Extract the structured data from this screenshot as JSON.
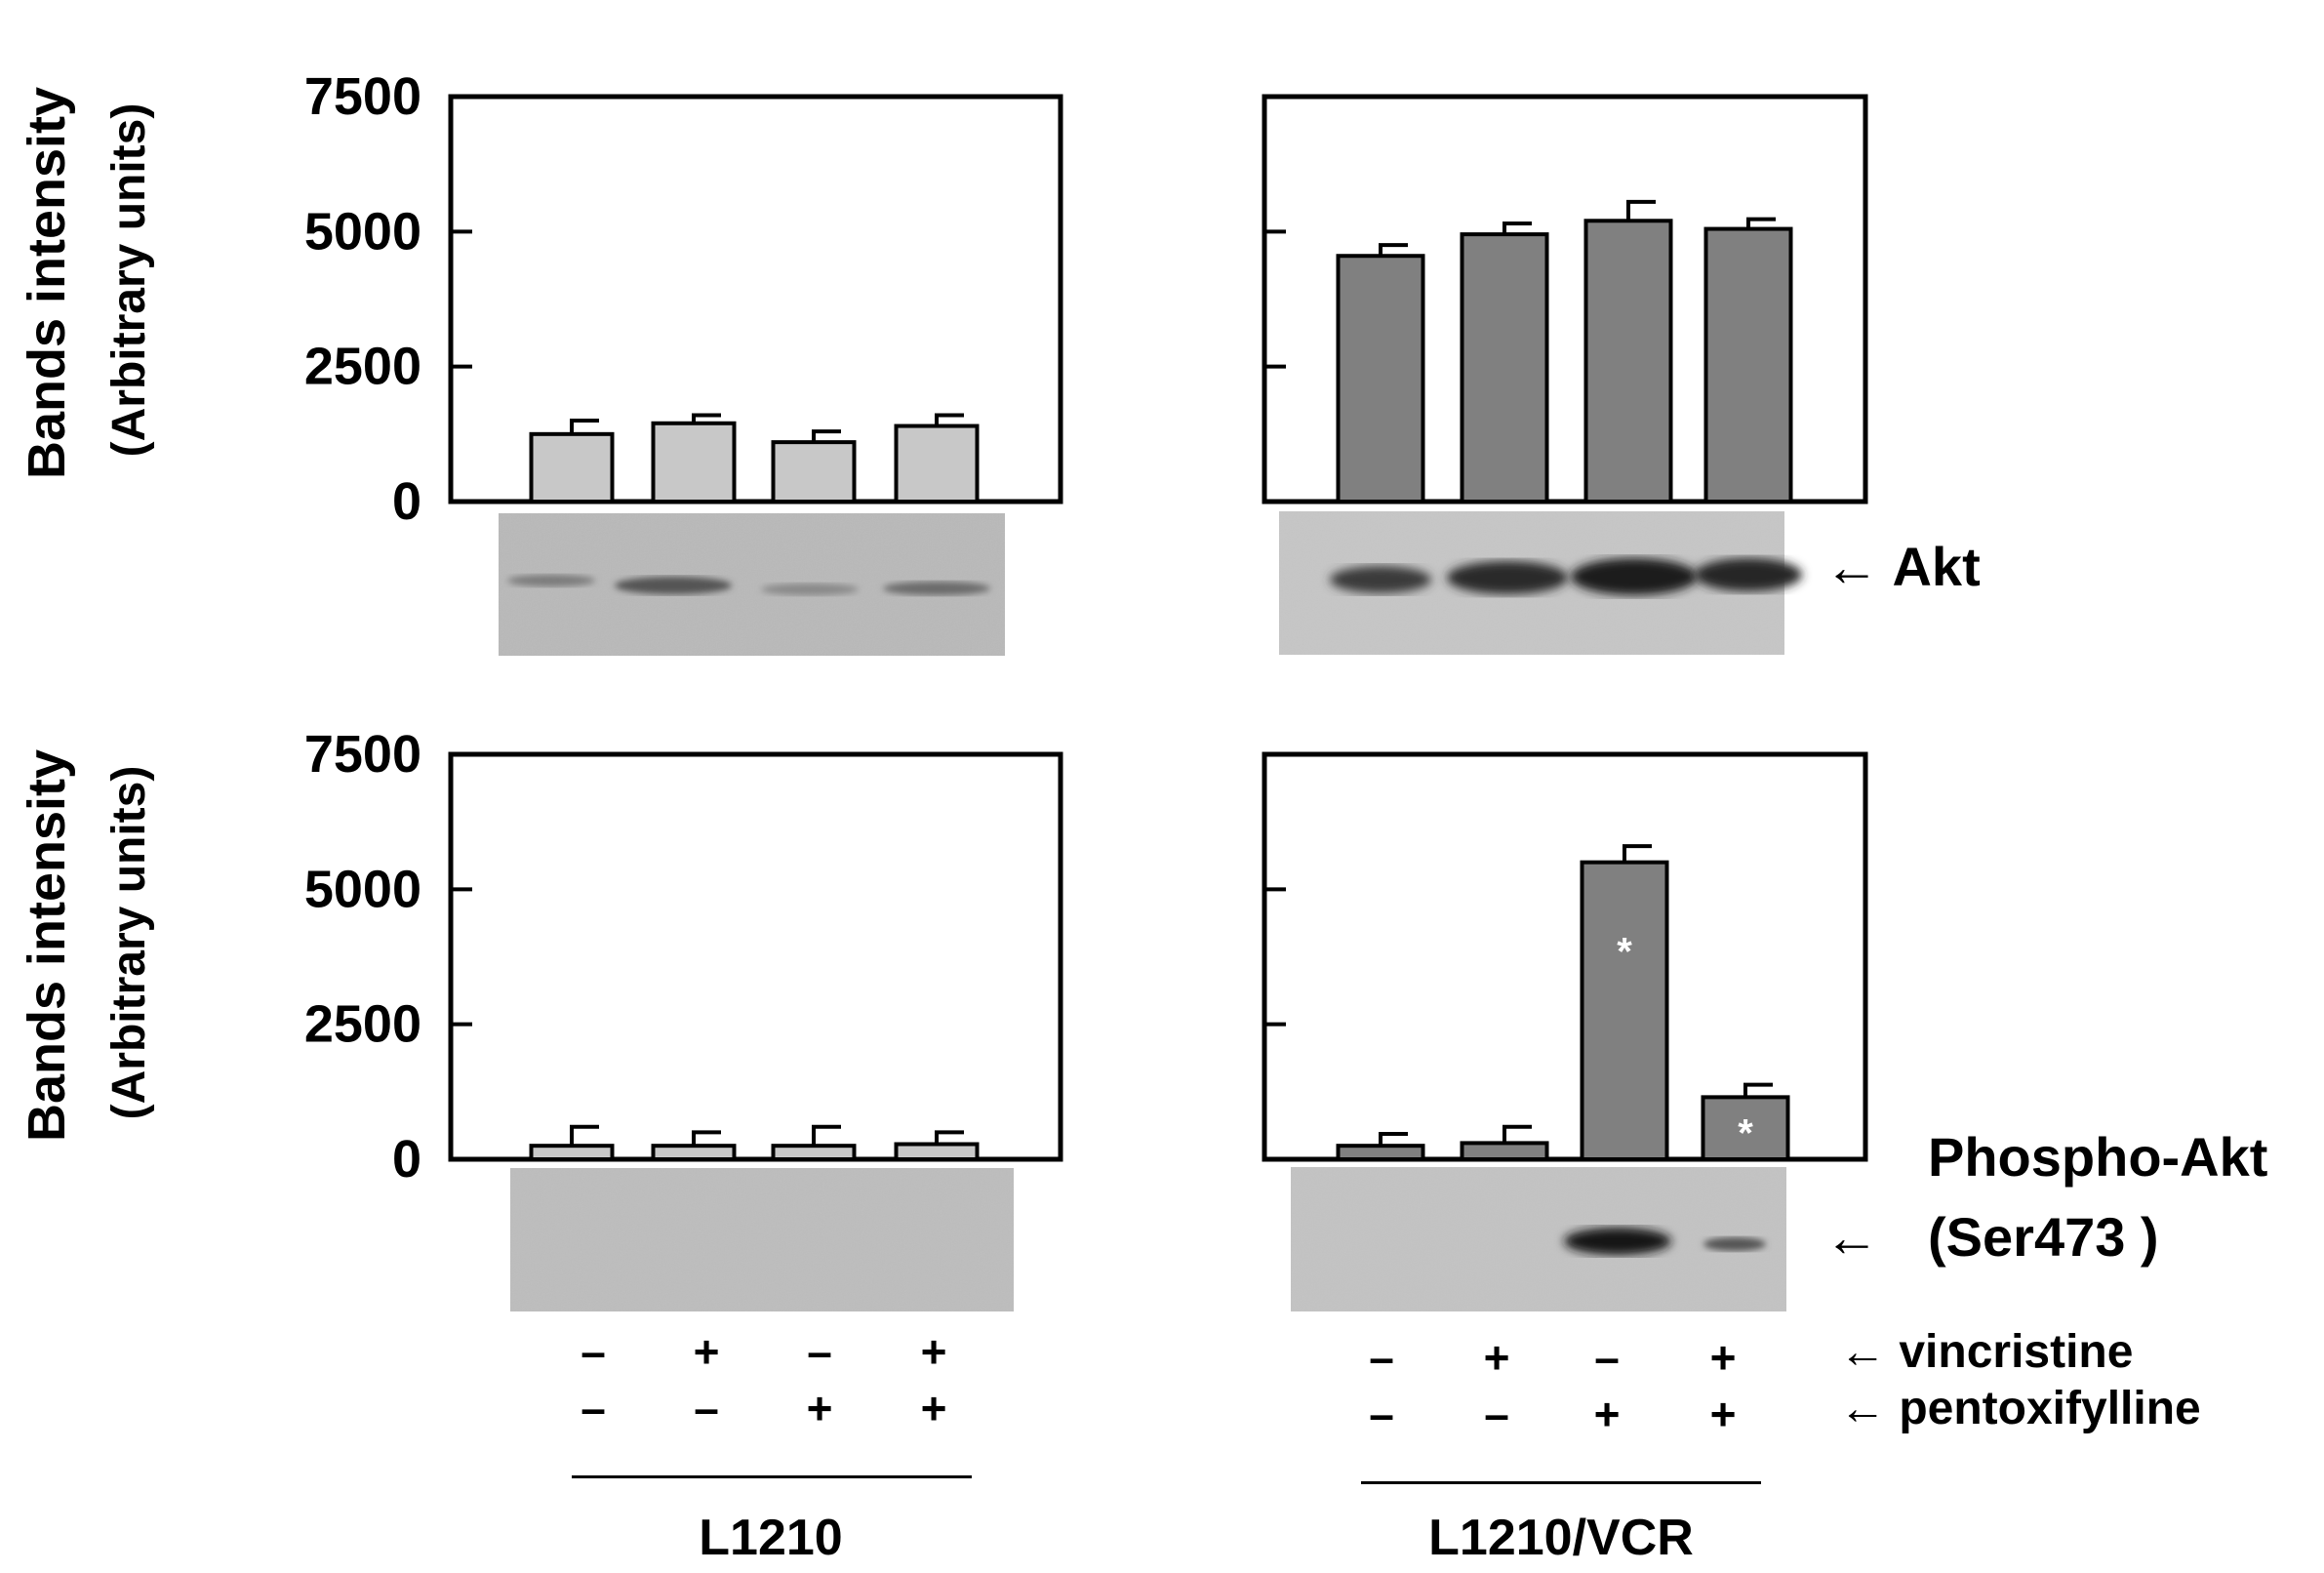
{
  "y_axis": {
    "label": "Bands intensity",
    "units": "(Arbitrary units)",
    "ticks": [
      "7500",
      "5000",
      "2500",
      "0"
    ]
  },
  "labels": {
    "akt": "← Akt",
    "phospho_line1": "Phospho-Akt",
    "phospho_line2": "(Ser473 )",
    "phospho_arrow": "←",
    "vincristine": "← vincristine",
    "pentoxifylline": "← pentoxifylline"
  },
  "groups": {
    "left": "L1210",
    "right": "L1210/VCR"
  },
  "conditions": {
    "vincristine": [
      "–",
      "+",
      "–",
      "+"
    ],
    "pentoxifylline": [
      "–",
      "–",
      "+",
      "+"
    ]
  },
  "colors": {
    "l1210_bar": "#c8c8c8",
    "vcr_bar": "#808080",
    "axis": "#000000"
  },
  "chart_data": [
    {
      "type": "bar",
      "panel": "Akt / L1210",
      "ylim": [
        0,
        7500
      ],
      "y_ticks": [
        0,
        2500,
        5000,
        7500
      ],
      "values": [
        1250,
        1450,
        1100,
        1400
      ],
      "errors": [
        250,
        150,
        200,
        200
      ],
      "significant": [
        false,
        false,
        false,
        false
      ]
    },
    {
      "type": "bar",
      "panel": "Akt / L1210/VCR",
      "ylim": [
        0,
        7500
      ],
      "y_ticks": [
        0,
        2500,
        5000,
        7500
      ],
      "values": [
        4550,
        4950,
        5200,
        5050
      ],
      "errors": [
        200,
        200,
        350,
        180
      ],
      "significant": [
        false,
        false,
        false,
        false
      ]
    },
    {
      "type": "bar",
      "panel": "Phospho-Akt / L1210",
      "ylim": [
        0,
        7500
      ],
      "y_ticks": [
        0,
        2500,
        5000,
        7500
      ],
      "values": [
        250,
        250,
        250,
        280
      ],
      "errors": [
        350,
        250,
        350,
        220
      ],
      "significant": [
        false,
        false,
        false,
        false
      ]
    },
    {
      "type": "bar",
      "panel": "Phospho-Akt / L1210/VCR",
      "ylim": [
        0,
        7500
      ],
      "y_ticks": [
        0,
        2500,
        5000,
        7500
      ],
      "values": [
        250,
        300,
        5500,
        1150
      ],
      "errors": [
        220,
        300,
        300,
        230
      ],
      "significant": [
        false,
        false,
        true,
        true
      ],
      "significance_mark": "*"
    }
  ]
}
